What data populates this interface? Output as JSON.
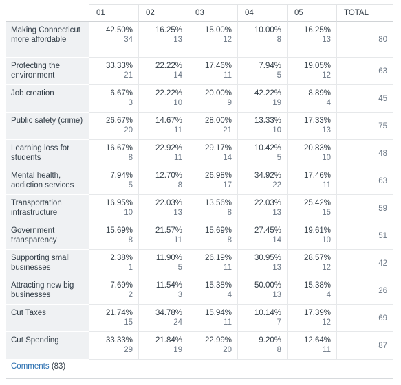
{
  "table": {
    "headers": [
      "",
      "01",
      "02",
      "03",
      "04",
      "05",
      "TOTAL"
    ],
    "rows": [
      {
        "label": "Making Connecticut more affordable",
        "cells": [
          [
            "42.50%",
            "34"
          ],
          [
            "16.25%",
            "13"
          ],
          [
            "15.00%",
            "12"
          ],
          [
            "10.00%",
            "8"
          ],
          [
            "16.25%",
            "13"
          ]
        ],
        "total": "80"
      },
      {
        "label": "Protecting the environment",
        "cells": [
          [
            "33.33%",
            "21"
          ],
          [
            "22.22%",
            "14"
          ],
          [
            "17.46%",
            "11"
          ],
          [
            "7.94%",
            "5"
          ],
          [
            "19.05%",
            "12"
          ]
        ],
        "total": "63"
      },
      {
        "label": "Job creation",
        "cells": [
          [
            "6.67%",
            "3"
          ],
          [
            "22.22%",
            "10"
          ],
          [
            "20.00%",
            "9"
          ],
          [
            "42.22%",
            "19"
          ],
          [
            "8.89%",
            "4"
          ]
        ],
        "total": "45"
      },
      {
        "label": "Public safety (crime)",
        "cells": [
          [
            "26.67%",
            "20"
          ],
          [
            "14.67%",
            "11"
          ],
          [
            "28.00%",
            "21"
          ],
          [
            "13.33%",
            "10"
          ],
          [
            "17.33%",
            "13"
          ]
        ],
        "total": "75"
      },
      {
        "label": "Learning loss for students",
        "cells": [
          [
            "16.67%",
            "8"
          ],
          [
            "22.92%",
            "11"
          ],
          [
            "29.17%",
            "14"
          ],
          [
            "10.42%",
            "5"
          ],
          [
            "20.83%",
            "10"
          ]
        ],
        "total": "48"
      },
      {
        "label": "Mental health, addiction services",
        "cells": [
          [
            "7.94%",
            "5"
          ],
          [
            "12.70%",
            "8"
          ],
          [
            "26.98%",
            "17"
          ],
          [
            "34.92%",
            "22"
          ],
          [
            "17.46%",
            "11"
          ]
        ],
        "total": "63"
      },
      {
        "label": "Transportation infrastructure",
        "cells": [
          [
            "16.95%",
            "10"
          ],
          [
            "22.03%",
            "13"
          ],
          [
            "13.56%",
            "8"
          ],
          [
            "22.03%",
            "13"
          ],
          [
            "25.42%",
            "15"
          ]
        ],
        "total": "59"
      },
      {
        "label": "Government transparency",
        "cells": [
          [
            "15.69%",
            "8"
          ],
          [
            "21.57%",
            "11"
          ],
          [
            "15.69%",
            "8"
          ],
          [
            "27.45%",
            "14"
          ],
          [
            "19.61%",
            "10"
          ]
        ],
        "total": "51"
      },
      {
        "label": "Supporting small businesses",
        "cells": [
          [
            "2.38%",
            "1"
          ],
          [
            "11.90%",
            "5"
          ],
          [
            "26.19%",
            "11"
          ],
          [
            "30.95%",
            "13"
          ],
          [
            "28.57%",
            "12"
          ]
        ],
        "total": "42"
      },
      {
        "label": "Attracting new big businesses",
        "cells": [
          [
            "7.69%",
            "2"
          ],
          [
            "11.54%",
            "3"
          ],
          [
            "15.38%",
            "4"
          ],
          [
            "50.00%",
            "13"
          ],
          [
            "15.38%",
            "4"
          ]
        ],
        "total": "26"
      },
      {
        "label": "Cut Taxes",
        "cells": [
          [
            "21.74%",
            "15"
          ],
          [
            "34.78%",
            "24"
          ],
          [
            "15.94%",
            "11"
          ],
          [
            "10.14%",
            "7"
          ],
          [
            "17.39%",
            "12"
          ]
        ],
        "total": "69"
      },
      {
        "label": "Cut Spending",
        "cells": [
          [
            "33.33%",
            "29"
          ],
          [
            "21.84%",
            "19"
          ],
          [
            "22.99%",
            "20"
          ],
          [
            "9.20%",
            "8"
          ],
          [
            "12.64%",
            "11"
          ]
        ],
        "total": "87"
      }
    ]
  },
  "comments": {
    "label": "Comments",
    "count": "(83)"
  }
}
